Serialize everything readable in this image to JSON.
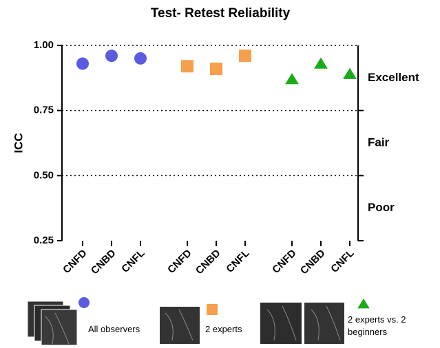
{
  "chart_data": {
    "type": "scatter",
    "title": "Test- Retest Reliability",
    "y_label": "ICC",
    "categories": [
      "CNFD",
      "CNBD",
      "CNFL",
      "CNFD",
      "CNBD",
      "CNFL",
      "CNFD",
      "CNBD",
      "CNFL"
    ],
    "series": [
      {
        "name": "All observers",
        "color": "#5b5be0",
        "marker": "circle",
        "values": [
          0.93,
          0.96,
          0.95,
          null,
          null,
          null,
          null,
          null,
          null
        ]
      },
      {
        "name": "2 experts",
        "color": "#f5a04c",
        "marker": "square",
        "values": [
          null,
          null,
          null,
          0.92,
          0.91,
          0.96,
          null,
          null,
          null
        ]
      },
      {
        "name": "2 experts vs. 2 beginners",
        "color": "#1aaa1a",
        "marker": "triangle",
        "values": [
          null,
          null,
          null,
          null,
          null,
          null,
          0.87,
          0.93,
          0.89
        ]
      }
    ],
    "ylim": [
      0.25,
      1.0
    ],
    "yticks": [
      {
        "value": 0.25,
        "label": "0.25"
      },
      {
        "value": 0.5,
        "label": "0.50"
      },
      {
        "value": 0.75,
        "label": "0.75"
      },
      {
        "value": 1.0,
        "label": "1.00"
      }
    ],
    "grid": true,
    "bands": [
      {
        "label": "Excellent",
        "from": 0.75,
        "to": 1.0
      },
      {
        "label": "Fair",
        "from": 0.5,
        "to": 0.75
      },
      {
        "label": "Poor",
        "from": 0.25,
        "to": 0.5
      }
    ]
  }
}
